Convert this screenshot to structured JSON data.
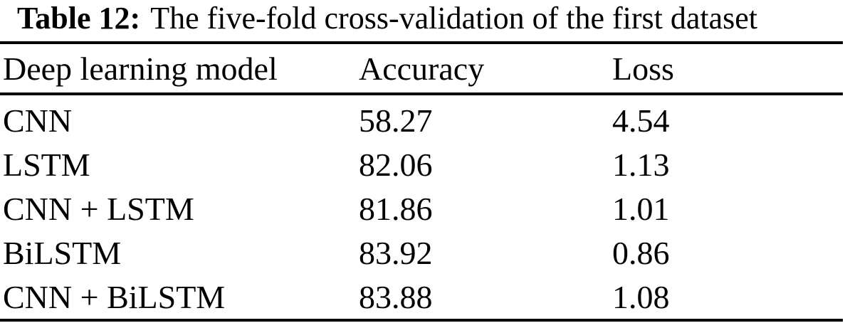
{
  "caption": {
    "label": "Table 12:",
    "text": "The five-fold cross-validation of the first dataset"
  },
  "table": {
    "columns": [
      "Deep learning model",
      "Accuracy",
      "Loss"
    ],
    "rows": [
      [
        "CNN",
        "58.27",
        "4.54"
      ],
      [
        "LSTM",
        "82.06",
        "1.13"
      ],
      [
        "CNN + LSTM",
        "81.86",
        "1.01"
      ],
      [
        "BiLSTM",
        "83.92",
        "0.86"
      ],
      [
        "CNN + BiLSTM",
        "83.88",
        "1.08"
      ]
    ]
  },
  "chart_data": {
    "type": "table",
    "title": "Table 12: The five-fold cross-validation of the first dataset",
    "columns": [
      "Deep learning model",
      "Accuracy",
      "Loss"
    ],
    "rows": [
      [
        "CNN",
        58.27,
        4.54
      ],
      [
        "LSTM",
        82.06,
        1.13
      ],
      [
        "CNN + LSTM",
        81.86,
        1.01
      ],
      [
        "BiLSTM",
        83.92,
        0.86
      ],
      [
        "CNN + BiLSTM",
        83.88,
        1.08
      ]
    ]
  },
  "colors": {
    "background": "#ffffff",
    "text": "#000000",
    "rule": "#000000"
  }
}
